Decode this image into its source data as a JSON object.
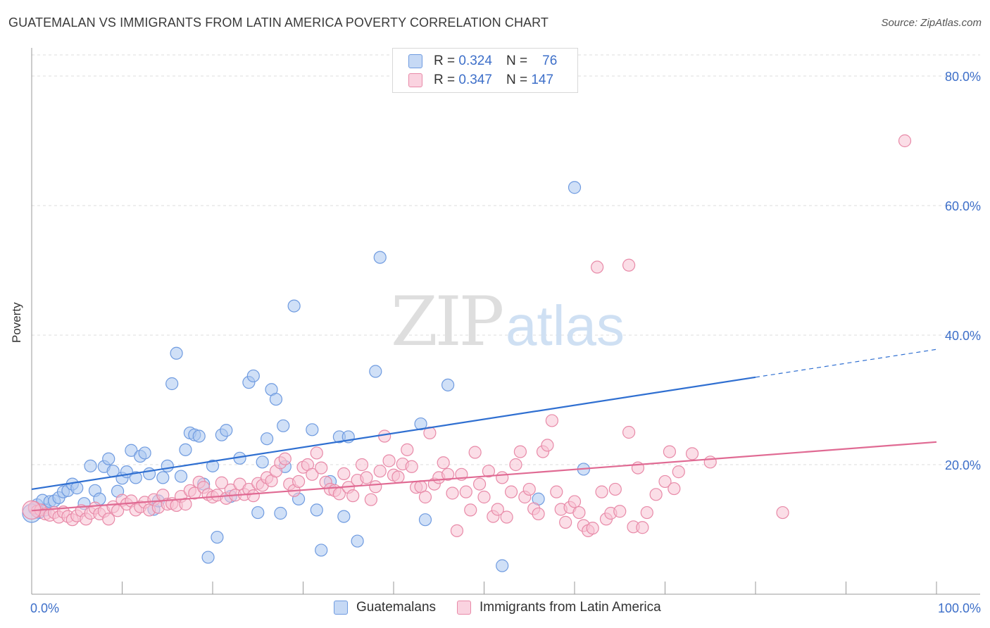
{
  "title": "GUATEMALAN VS IMMIGRANTS FROM LATIN AMERICA POVERTY CORRELATION CHART",
  "source": "Source: ZipAtlas.com",
  "watermark": {
    "zip": "ZIP",
    "atlas": "atlas"
  },
  "legend_top": [
    {
      "r_label": "R = ",
      "r_value": "0.324",
      "n_label": "N = ",
      "n_value": "76",
      "color": "#a9c6f0",
      "border": "#6f9be0"
    },
    {
      "r_label": "R = ",
      "r_value": "0.347",
      "n_label": "N = ",
      "n_value": "147",
      "color": "#f7c2d3",
      "border": "#e88aa8"
    }
  ],
  "legend_bottom": [
    {
      "label": "Guatemalans",
      "color": "#a9c6f0",
      "border": "#6f9be0"
    },
    {
      "label": "Immigrants from Latin America",
      "color": "#f7c2d3",
      "border": "#e88aa8"
    }
  ],
  "chart_data": {
    "type": "scatter",
    "ylabel": "Poverty",
    "xlim": [
      0,
      100
    ],
    "ylim": [
      0,
      80
    ],
    "x_tick_labels": [
      "0.0%",
      "100.0%"
    ],
    "y_ticks": [
      20,
      40,
      60,
      80
    ],
    "y_tick_labels": [
      "20.0%",
      "40.0%",
      "60.0%",
      "80.0%"
    ],
    "grid": true,
    "series": [
      {
        "name": "Guatemalans",
        "color": "#6f9be0",
        "fill": "#a9c6f0",
        "trend": {
          "x0": 0,
          "y0": 16.2,
          "x1": 80,
          "y1": 33.5,
          "dash_to": 100,
          "dash_y": 37.8,
          "color": "#2f6fd1"
        },
        "points": [
          [
            0.3,
            13.2
          ],
          [
            0.6,
            13.8
          ],
          [
            0.8,
            12.6
          ],
          [
            1.2,
            14.5
          ],
          [
            1.5,
            13.0
          ],
          [
            2.0,
            14.3
          ],
          [
            2.5,
            14.4
          ],
          [
            3.0,
            14.9
          ],
          [
            3.5,
            15.8
          ],
          [
            4.0,
            16.0
          ],
          [
            4.5,
            17.0
          ],
          [
            5.0,
            16.4
          ],
          [
            5.8,
            14.0
          ],
          [
            6.5,
            19.8
          ],
          [
            7.0,
            16.0
          ],
          [
            7.5,
            14.7
          ],
          [
            8.0,
            19.7
          ],
          [
            8.5,
            20.9
          ],
          [
            9.0,
            19.0
          ],
          [
            9.5,
            15.9
          ],
          [
            10.0,
            17.9
          ],
          [
            10.5,
            18.9
          ],
          [
            11.0,
            22.2
          ],
          [
            11.5,
            18.0
          ],
          [
            12.0,
            21.3
          ],
          [
            12.5,
            21.8
          ],
          [
            13.0,
            18.6
          ],
          [
            13.5,
            13.1
          ],
          [
            14.0,
            14.4
          ],
          [
            14.5,
            18.0
          ],
          [
            15.0,
            19.8
          ],
          [
            15.5,
            32.5
          ],
          [
            16.0,
            37.2
          ],
          [
            16.5,
            18.2
          ],
          [
            17.0,
            22.3
          ],
          [
            17.5,
            24.9
          ],
          [
            18.0,
            24.6
          ],
          [
            18.5,
            24.4
          ],
          [
            19.0,
            17.0
          ],
          [
            19.5,
            5.7
          ],
          [
            20.0,
            19.8
          ],
          [
            20.5,
            8.8
          ],
          [
            21.0,
            24.6
          ],
          [
            21.5,
            25.3
          ],
          [
            22.0,
            15.1
          ],
          [
            23.0,
            21.0
          ],
          [
            24.0,
            32.7
          ],
          [
            24.5,
            33.7
          ],
          [
            25.0,
            12.6
          ],
          [
            25.5,
            20.4
          ],
          [
            26.0,
            24.0
          ],
          [
            26.5,
            31.6
          ],
          [
            27.0,
            30.1
          ],
          [
            27.5,
            12.5
          ],
          [
            27.8,
            26.0
          ],
          [
            28.0,
            19.7
          ],
          [
            29.0,
            44.5
          ],
          [
            29.5,
            14.7
          ],
          [
            31.0,
            25.4
          ],
          [
            31.5,
            13.0
          ],
          [
            32.0,
            6.8
          ],
          [
            33.0,
            17.4
          ],
          [
            34.0,
            24.3
          ],
          [
            34.5,
            12.0
          ],
          [
            35.0,
            24.3
          ],
          [
            36.0,
            8.2
          ],
          [
            38.0,
            34.4
          ],
          [
            38.5,
            52.0
          ],
          [
            43.0,
            26.3
          ],
          [
            43.5,
            11.5
          ],
          [
            46.0,
            32.3
          ],
          [
            52.0,
            4.4
          ],
          [
            56.0,
            14.7
          ],
          [
            60.0,
            62.8
          ],
          [
            61.0,
            19.3
          ],
          [
            0.0,
            12.5
          ]
        ]
      },
      {
        "name": "Immigrants from Latin America",
        "color": "#e88aa8",
        "fill": "#f7c2d3",
        "trend": {
          "x0": 0,
          "y0": 12.9,
          "x1": 100,
          "y1": 23.5,
          "color": "#e06a93"
        },
        "points": [
          [
            0.3,
            13.4
          ],
          [
            0.6,
            12.8
          ],
          [
            1.0,
            13.0
          ],
          [
            1.5,
            12.4
          ],
          [
            2.0,
            12.2
          ],
          [
            2.5,
            12.6
          ],
          [
            3.0,
            11.9
          ],
          [
            3.5,
            12.7
          ],
          [
            4.0,
            12.0
          ],
          [
            4.5,
            11.5
          ],
          [
            5.0,
            12.1
          ],
          [
            5.5,
            12.9
          ],
          [
            6.0,
            11.6
          ],
          [
            6.5,
            12.5
          ],
          [
            7.0,
            13.3
          ],
          [
            7.5,
            12.4
          ],
          [
            8.0,
            12.8
          ],
          [
            8.5,
            11.6
          ],
          [
            9.0,
            13.5
          ],
          [
            9.5,
            12.9
          ],
          [
            10.0,
            14.5
          ],
          [
            10.5,
            13.9
          ],
          [
            11.0,
            14.4
          ],
          [
            11.5,
            13.0
          ],
          [
            12.0,
            13.5
          ],
          [
            12.5,
            14.2
          ],
          [
            13.0,
            13.0
          ],
          [
            13.5,
            14.6
          ],
          [
            14.0,
            13.4
          ],
          [
            14.5,
            15.3
          ],
          [
            15.0,
            13.9
          ],
          [
            15.5,
            14.0
          ],
          [
            16.0,
            13.7
          ],
          [
            16.5,
            15.1
          ],
          [
            17.0,
            13.9
          ],
          [
            17.5,
            16.0
          ],
          [
            18.0,
            15.6
          ],
          [
            18.5,
            17.3
          ],
          [
            19.0,
            16.5
          ],
          [
            19.5,
            15.4
          ],
          [
            20.0,
            15.0
          ],
          [
            20.5,
            15.3
          ],
          [
            21.0,
            17.2
          ],
          [
            21.5,
            14.8
          ],
          [
            22.0,
            16.1
          ],
          [
            22.5,
            15.3
          ],
          [
            23.0,
            17.0
          ],
          [
            23.5,
            15.4
          ],
          [
            24.0,
            16.2
          ],
          [
            24.5,
            15.2
          ],
          [
            25.0,
            17.1
          ],
          [
            25.5,
            16.8
          ],
          [
            26.0,
            18.0
          ],
          [
            26.5,
            17.5
          ],
          [
            27.0,
            19.0
          ],
          [
            27.5,
            20.3
          ],
          [
            28.0,
            20.9
          ],
          [
            28.5,
            17.0
          ],
          [
            29.0,
            16.0
          ],
          [
            29.5,
            17.4
          ],
          [
            30.0,
            19.6
          ],
          [
            30.5,
            20.0
          ],
          [
            31.0,
            18.5
          ],
          [
            31.5,
            21.8
          ],
          [
            32.0,
            19.5
          ],
          [
            32.5,
            17.3
          ],
          [
            33.0,
            16.2
          ],
          [
            33.5,
            16.0
          ],
          [
            34.0,
            15.5
          ],
          [
            34.5,
            18.6
          ],
          [
            35.0,
            16.5
          ],
          [
            35.5,
            15.2
          ],
          [
            36.0,
            17.6
          ],
          [
            36.5,
            20.0
          ],
          [
            37.0,
            18.0
          ],
          [
            37.5,
            14.6
          ],
          [
            38.0,
            16.6
          ],
          [
            38.5,
            19.0
          ],
          [
            39.0,
            24.4
          ],
          [
            39.5,
            20.6
          ],
          [
            40.0,
            18.4
          ],
          [
            40.5,
            18.1
          ],
          [
            41.0,
            20.1
          ],
          [
            41.5,
            22.3
          ],
          [
            42.0,
            19.7
          ],
          [
            42.5,
            16.5
          ],
          [
            43.0,
            16.6
          ],
          [
            43.5,
            15.0
          ],
          [
            44.0,
            24.9
          ],
          [
            44.5,
            17.0
          ],
          [
            45.0,
            18.0
          ],
          [
            45.5,
            20.3
          ],
          [
            46.0,
            18.5
          ],
          [
            46.5,
            15.6
          ],
          [
            47.0,
            9.8
          ],
          [
            47.5,
            18.5
          ],
          [
            48.0,
            15.8
          ],
          [
            48.5,
            13.0
          ],
          [
            49.0,
            21.9
          ],
          [
            49.5,
            17.0
          ],
          [
            50.0,
            15.0
          ],
          [
            50.5,
            19.0
          ],
          [
            51.0,
            12.0
          ],
          [
            51.5,
            13.1
          ],
          [
            52.0,
            18.0
          ],
          [
            52.5,
            11.9
          ],
          [
            53.0,
            15.8
          ],
          [
            53.5,
            20.0
          ],
          [
            54.0,
            22.0
          ],
          [
            54.5,
            15.0
          ],
          [
            55.0,
            16.2
          ],
          [
            55.5,
            13.2
          ],
          [
            56.0,
            12.4
          ],
          [
            56.5,
            22.0
          ],
          [
            57.0,
            23.0
          ],
          [
            57.5,
            26.8
          ],
          [
            58.0,
            15.8
          ],
          [
            58.5,
            13.1
          ],
          [
            59.0,
            11.1
          ],
          [
            59.5,
            13.4
          ],
          [
            60.0,
            14.3
          ],
          [
            60.5,
            12.6
          ],
          [
            61.0,
            10.6
          ],
          [
            61.5,
            9.8
          ],
          [
            62.0,
            10.2
          ],
          [
            63.0,
            15.8
          ],
          [
            63.5,
            11.6
          ],
          [
            64.0,
            12.5
          ],
          [
            64.5,
            16.2
          ],
          [
            65.0,
            12.8
          ],
          [
            66.0,
            25.0
          ],
          [
            66.5,
            10.4
          ],
          [
            67.0,
            19.5
          ],
          [
            67.5,
            10.3
          ],
          [
            68.0,
            12.6
          ],
          [
            69.0,
            15.4
          ],
          [
            70.0,
            17.4
          ],
          [
            70.5,
            22.0
          ],
          [
            71.0,
            16.3
          ],
          [
            71.5,
            18.9
          ],
          [
            73.0,
            21.7
          ],
          [
            75.0,
            20.4
          ],
          [
            83.0,
            12.6
          ],
          [
            62.5,
            50.5
          ],
          [
            66.0,
            50.8
          ],
          [
            96.5,
            70.0
          ],
          [
            0.0,
            13.0
          ]
        ]
      }
    ]
  }
}
